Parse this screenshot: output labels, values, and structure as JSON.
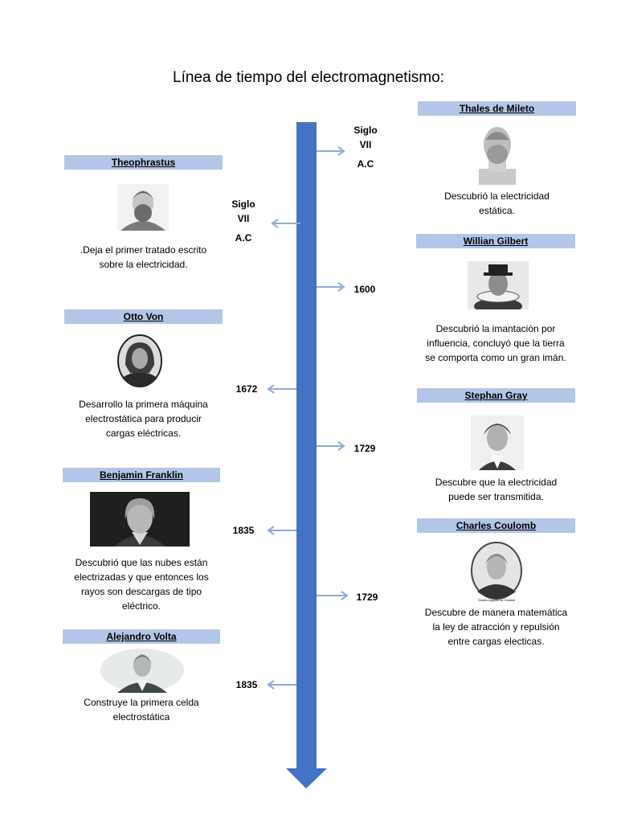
{
  "title": "Línea de tiempo del electromagnetismo:",
  "arrow_color": "#4472c4",
  "header_bg": "#b4c6e7",
  "left": [
    {
      "name": "Theophrastus",
      "date_line1": "Siglo",
      "date_line2": "VII",
      "date_line3": "A.C",
      "desc": [
        ".Deja el primer tratado escrito",
        "sobre la electricidad."
      ]
    },
    {
      "name": "Otto Von",
      "date": "1672",
      "desc": [
        "Desarrollo la primera máquina",
        "electrostática para producir",
        "cargas eléctricas."
      ]
    },
    {
      "name": "Benjamin Franklin",
      "date": "1835",
      "desc": [
        "Descubrió que las nubes están",
        "electrizadas y que entonces los",
        "rayos son descargas de tipo",
        "eléctrico."
      ]
    },
    {
      "name": "Alejandro Volta",
      "date": "1835",
      "desc": [
        "Construye la primera celda",
        "electrostática"
      ]
    }
  ],
  "right": [
    {
      "name": "Thales de Mileto",
      "date_line1": "Siglo",
      "date_line2": "VII",
      "date_line3": "A.C",
      "desc": [
        "Descubrió la electricidad",
        "estática."
      ]
    },
    {
      "name": "Willian Gilbert",
      "date": "1600",
      "desc": [
        "Descubrió la imantación por",
        "influencia, concluyó que la tierra",
        "se comporta como un gran imán."
      ]
    },
    {
      "name": "Stephan Gray",
      "date": "1729",
      "desc": [
        "Descubre que la electricidad",
        "puede ser transmitida."
      ]
    },
    {
      "name": "Charles Coulomb",
      "date": "1729",
      "caption": "Charles Augustin de Coulomb",
      "desc": [
        "Descubre de manera matemática",
        "la ley de atracción y repulsión",
        "entre cargas electicas."
      ]
    }
  ]
}
